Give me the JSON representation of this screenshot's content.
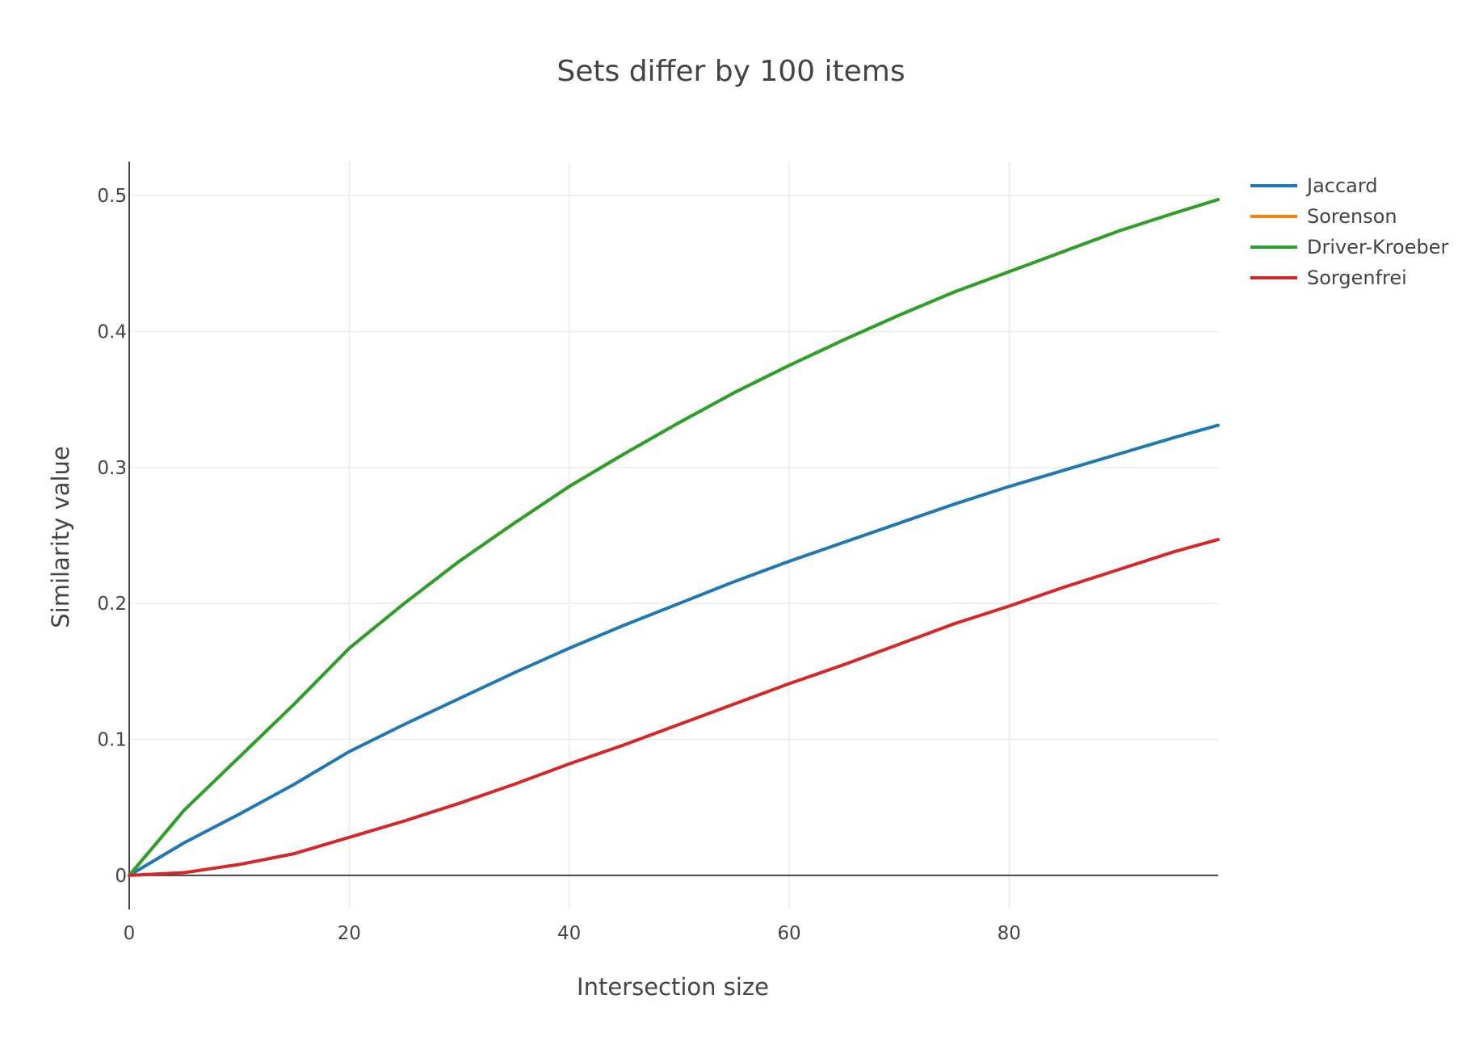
{
  "chart_data": {
    "type": "line",
    "title": "Sets differ by 100 items",
    "xlabel": "Intersection size",
    "ylabel": "Similarity value",
    "xlim": [
      0,
      99
    ],
    "ylim": [
      -0.025,
      0.525
    ],
    "xticks": [
      0,
      20,
      40,
      60,
      80
    ],
    "yticks": [
      0,
      0.1,
      0.2,
      0.3,
      0.4,
      0.5
    ],
    "xtick_labels": [
      "0",
      "20",
      "40",
      "60",
      "80"
    ],
    "ytick_labels": [
      "0",
      "0.1",
      "0.2",
      "0.3",
      "0.4",
      "0.5"
    ],
    "grid": true,
    "legend_position": "top-right",
    "x": [
      0,
      5,
      10,
      15,
      20,
      25,
      30,
      35,
      40,
      45,
      50,
      55,
      60,
      65,
      70,
      75,
      80,
      85,
      90,
      95,
      99
    ],
    "series": [
      {
        "name": "Jaccard",
        "color": "#1f77b4",
        "values": [
          0,
          0.024,
          0.045,
          0.067,
          0.091,
          0.111,
          0.13,
          0.149,
          0.167,
          0.184,
          0.2,
          0.216,
          0.231,
          0.245,
          0.259,
          0.273,
          0.286,
          0.298,
          0.31,
          0.322,
          0.331
        ]
      },
      {
        "name": "Sorenson",
        "color": "#ff7f0e",
        "values": [
          0,
          0.048,
          0.087,
          0.126,
          0.167,
          0.2,
          0.231,
          0.259,
          0.286,
          0.31,
          0.333,
          0.355,
          0.375,
          0.394,
          0.412,
          0.429,
          0.444,
          0.459,
          0.474,
          0.487,
          0.497
        ]
      },
      {
        "name": "Driver-Kroeber",
        "color": "#2ca02c",
        "values": [
          0,
          0.048,
          0.087,
          0.126,
          0.167,
          0.2,
          0.231,
          0.259,
          0.286,
          0.31,
          0.333,
          0.355,
          0.375,
          0.394,
          0.412,
          0.429,
          0.444,
          0.459,
          0.474,
          0.487,
          0.497
        ]
      },
      {
        "name": "Sorgenfrei",
        "color": "#d62728",
        "values": [
          0,
          0.002,
          0.008,
          0.016,
          0.028,
          0.04,
          0.053,
          0.067,
          0.082,
          0.096,
          0.111,
          0.126,
          0.141,
          0.155,
          0.17,
          0.185,
          0.198,
          0.212,
          0.225,
          0.238,
          0.247
        ]
      }
    ]
  }
}
